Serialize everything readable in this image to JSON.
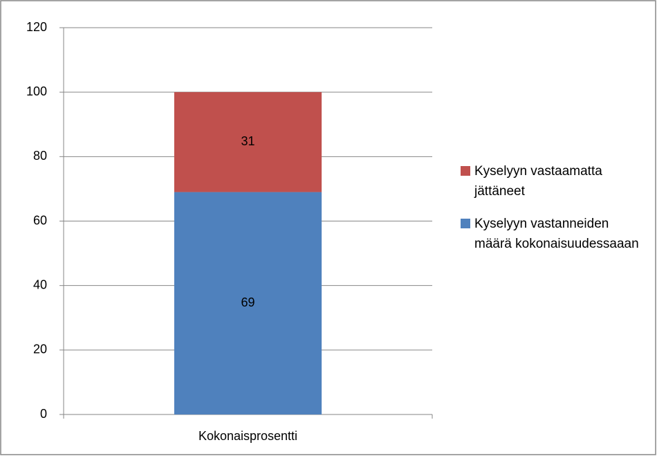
{
  "chart_data": {
    "type": "bar",
    "stacked": true,
    "categories": [
      "Kokonaisprosentti"
    ],
    "series": [
      {
        "name": "Kyselyyn vastanneiden määrä kokonaisuudessaaan",
        "color": "#4f81bd",
        "values": [
          69
        ]
      },
      {
        "name": "Kyselyyn vastaamatta jättäneet",
        "color": "#c0504d",
        "values": [
          31
        ]
      }
    ],
    "ylim": [
      0,
      120
    ],
    "yticks": [
      0,
      20,
      40,
      60,
      80,
      100,
      120
    ],
    "grid": true,
    "legend": "right"
  }
}
